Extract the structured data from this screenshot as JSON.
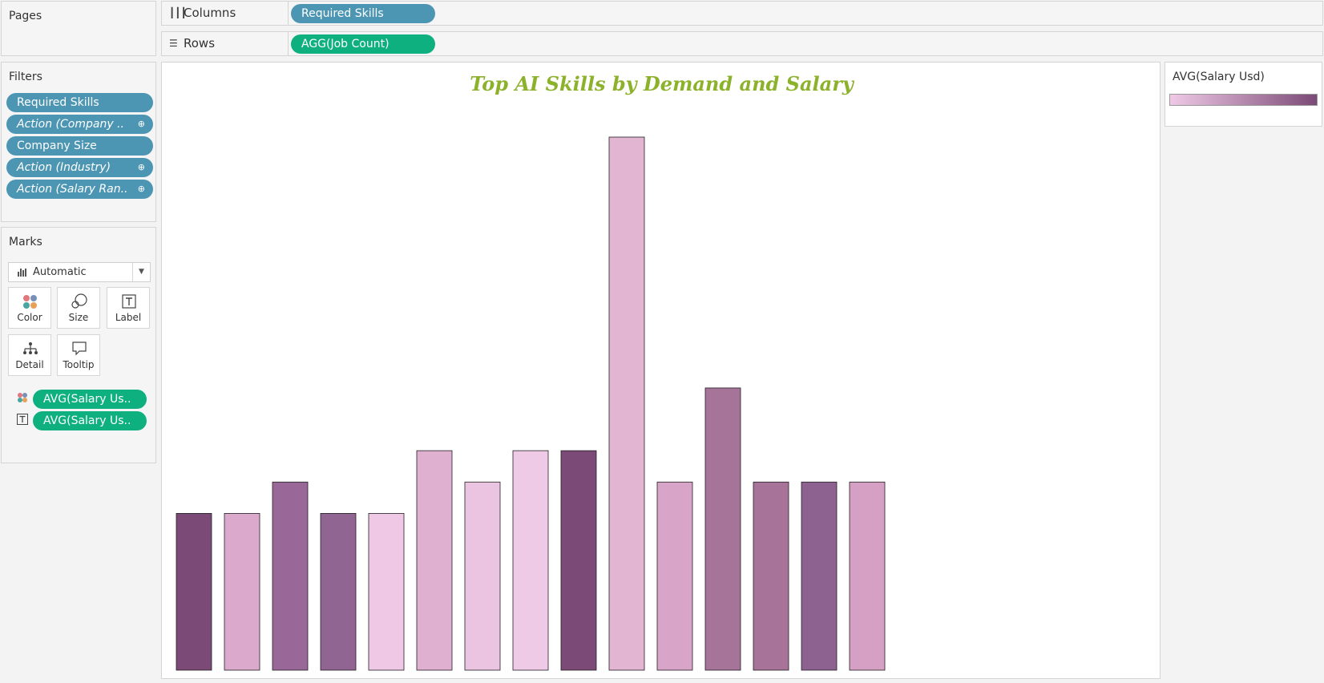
{
  "pages_card": {
    "title": "Pages"
  },
  "filters_card": {
    "title": "Filters",
    "pills": [
      {
        "label": "Required Skills",
        "italic": false,
        "link": false
      },
      {
        "label": "Action (Company ..",
        "italic": true,
        "link": true
      },
      {
        "label": "Company Size",
        "italic": false,
        "link": false
      },
      {
        "label": "Action (Industry)",
        "italic": true,
        "link": true
      },
      {
        "label": "Action (Salary Ran..",
        "italic": true,
        "link": true
      }
    ]
  },
  "marks_card": {
    "title": "Marks",
    "mark_type": "Automatic",
    "buttons": {
      "color": "Color",
      "size": "Size",
      "label": "Label",
      "detail": "Detail",
      "tooltip": "Tooltip"
    },
    "fields": [
      {
        "encoding": "color",
        "label": "AVG(Salary Us.."
      },
      {
        "encoding": "label",
        "label": "AVG(Salary Us.."
      }
    ]
  },
  "shelves": {
    "columns": {
      "label": "Columns",
      "pill": "Required Skills"
    },
    "rows": {
      "label": "Rows",
      "pill": "AGG(Job Count)"
    }
  },
  "legend": {
    "title": "AVG(Salary Usd)",
    "color_low": "#efc9e6",
    "color_high": "#7b4a76"
  },
  "chart_data": {
    "type": "bar",
    "title": "Top AI Skills by Demand and Salary",
    "xlabel": "",
    "ylabel": "",
    "ylim": [
      0,
      17
    ],
    "grid": false,
    "values": [
      5,
      5,
      6,
      5,
      5,
      7,
      6,
      7,
      7,
      17,
      6,
      9,
      6,
      6,
      6
    ],
    "colors": [
      "#7b4a76",
      "#dba9cb",
      "#9a6898",
      "#916591",
      "#eec8e5",
      "#dfb0d0",
      "#ebc4e1",
      "#efcae6",
      "#7b4a76",
      "#e2b5d3",
      "#d8a5c9",
      "#a67399",
      "#a77398",
      "#8d6190",
      "#d5a0c3"
    ]
  }
}
